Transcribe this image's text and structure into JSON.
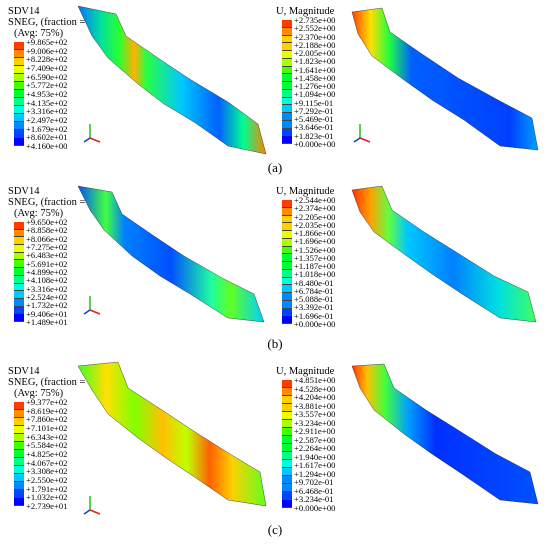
{
  "legend_colors": [
    "#0000ff",
    "#0044ff",
    "#0088ff",
    "#00c8ff",
    "#00ffd8",
    "#00ff88",
    "#00ff30",
    "#44ff00",
    "#aaff00",
    "#e8ff00",
    "#ffd000",
    "#ff8a00",
    "#ff3c00"
  ],
  "panels": [
    {
      "caption": "(a)",
      "left": {
        "title": "SDV14",
        "subtitle": "SNEG, (fraction = ",
        "avg": "(Avg: 75%)",
        "values": [
          "+9.865e+02",
          "+9.006e+02",
          "+8.228e+02",
          "+7.409e+02",
          "+6.590e+02",
          "+5.772e+02",
          "+4.953e+02",
          "+4.135e+02",
          "+3.316e+02",
          "+2.497e+02",
          "+1.679e+02",
          "+8.602e+01",
          "+4.160e+00"
        ]
      },
      "right": {
        "title": "U, Magnitude",
        "values": [
          "+2.735e+00",
          "+2.552e+00",
          "+2.370e+00",
          "+2.188e+00",
          "+2.005e+00",
          "+1.823e+00",
          "+1.641e+00",
          "+1.458e+00",
          "+1.276e+00",
          "+1.094e+00",
          "+9.115e-01",
          "+7.292e-01",
          "+5.469e-01",
          "+3.646e-01",
          "+1.823e-01",
          "+0.000e+00"
        ]
      }
    },
    {
      "caption": "(b)",
      "left": {
        "title": "SDV14",
        "subtitle": "SNEG, (fraction = ",
        "avg": "(Avg: 75%)",
        "values": [
          "+9.650e+02",
          "+8.858e+02",
          "+8.066e+02",
          "+7.275e+02",
          "+6.483e+02",
          "+5.691e+02",
          "+4.899e+02",
          "+4.108e+02",
          "+3.316e+02",
          "+2.524e+02",
          "+1.732e+02",
          "+9.406e+01",
          "+1.489e+01"
        ]
      },
      "right": {
        "title": "U, Magnitude",
        "values": [
          "+2.544e+00",
          "+2.374e+00",
          "+2.205e+00",
          "+2.035e+00",
          "+1.866e+00",
          "+1.696e+00",
          "+1.526e+00",
          "+1.357e+00",
          "+1.187e+00",
          "+1.018e+00",
          "+8.480e-01",
          "+6.784e-01",
          "+5.088e-01",
          "+3.392e-01",
          "+1.696e-01",
          "+0.000e+00"
        ]
      }
    },
    {
      "caption": "(c)",
      "left": {
        "title": "SDV14",
        "subtitle": "SNEG, (fraction = ",
        "avg": "(Avg: 75%)",
        "values": [
          "+9.377e+02",
          "+8.619e+02",
          "+7.860e+02",
          "+7.101e+02",
          "+6.343e+02",
          "+5.584e+02",
          "+4.825e+02",
          "+4.067e+02",
          "+3.308e+02",
          "+2.550e+02",
          "+1.791e+02",
          "+1.032e+02",
          "+2.739e+01"
        ]
      },
      "right": {
        "title": "U, Magnitude",
        "values": [
          "+4.851e+00",
          "+4.528e+00",
          "+4.204e+00",
          "+3.881e+00",
          "+3.557e+00",
          "+3.234e+00",
          "+2.911e+00",
          "+2.587e+00",
          "+2.264e+00",
          "+1.940e+00",
          "+1.617e+00",
          "+1.294e+00",
          "+9.702e-01",
          "+6.468e-01",
          "+3.234e-01",
          "+0.000e+00"
        ]
      }
    }
  ]
}
